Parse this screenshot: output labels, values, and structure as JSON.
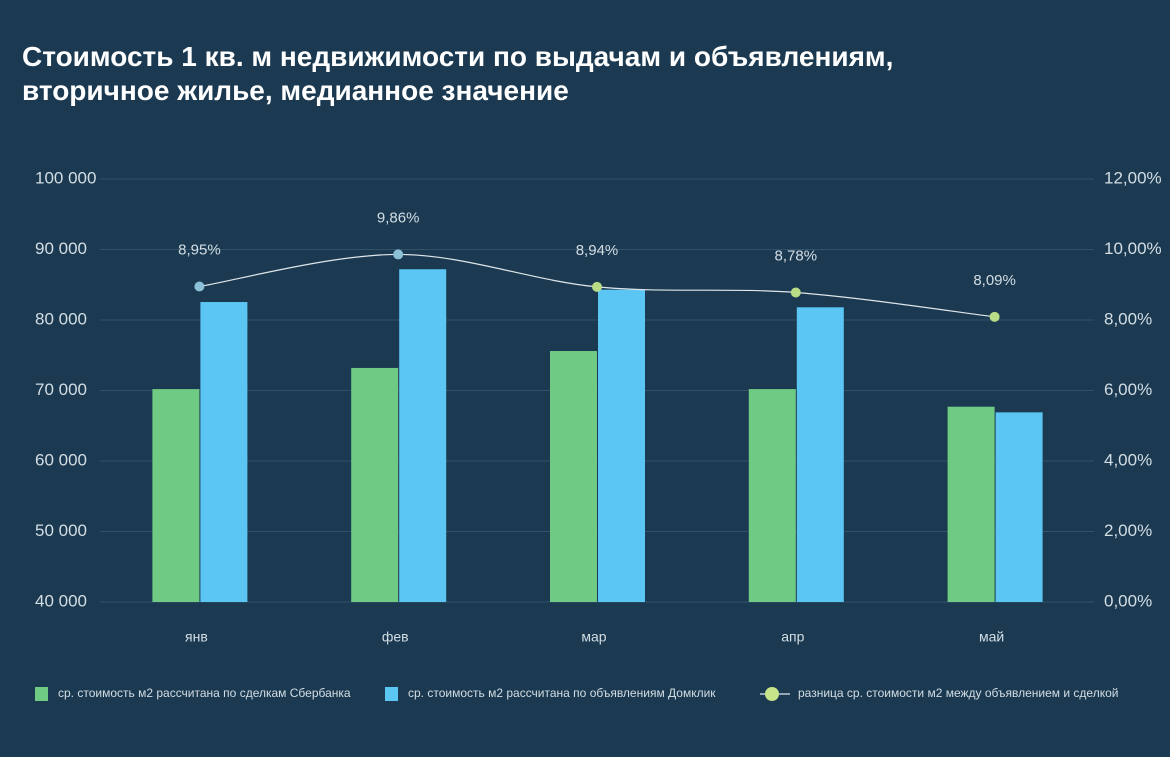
{
  "chart_data": {
    "type": "bar",
    "title": "Стоимость 1 кв. м недвижимости по выдачам и объявлениям, вторичное жилье, медианное значение",
    "categories": [
      "янв",
      "фев",
      "мар",
      "апр",
      "май"
    ],
    "series": [
      {
        "name": "ср. стоимость м2 рассчитана по сделкам Сбербанка",
        "type": "bar",
        "color": "#6fcb84",
        "values": [
          70200,
          73200,
          75600,
          70200,
          67700
        ]
      },
      {
        "name": "ср. стоимость м2 рассчитана по объявлениям Домклик",
        "type": "bar",
        "color": "#5bc6f3",
        "values": [
          82550,
          87200,
          84300,
          81800,
          66900
        ]
      },
      {
        "name": "разница ср. стоимости м2 между объявлением и сделкой",
        "type": "line",
        "axis": "y2",
        "color": "#dfe6ea",
        "marker_colors": [
          "#8cc0d6",
          "#8cc0d6",
          "#b9dc86",
          "#b9dc86",
          "#b9dc86"
        ],
        "legend_marker_color": "#c6e48a",
        "values": [
          8.95,
          9.86,
          8.94,
          8.78,
          8.09
        ],
        "value_labels": [
          "8,95%",
          "9,86%",
          "8,94%",
          "8,78%",
          "8,09%"
        ]
      }
    ],
    "ylim": [
      40000,
      100000
    ],
    "yticks": [
      {
        "value": 40000,
        "label": "40 000"
      },
      {
        "value": 50000,
        "label": "50 000"
      },
      {
        "value": 60000,
        "label": "60 000"
      },
      {
        "value": 70000,
        "label": "70 000"
      },
      {
        "value": 80000,
        "label": "80 000"
      },
      {
        "value": 90000,
        "label": "90 000"
      },
      {
        "value": 100000,
        "label": "100 000"
      }
    ],
    "y2lim": [
      0,
      12
    ],
    "y2ticks": [
      {
        "value": 0,
        "label": "0,00%"
      },
      {
        "value": 2,
        "label": "2,00%"
      },
      {
        "value": 4,
        "label": "4,00%"
      },
      {
        "value": 6,
        "label": "6,00%"
      },
      {
        "value": 8,
        "label": "8,00%"
      },
      {
        "value": 10,
        "label": "10,00%"
      },
      {
        "value": 12,
        "label": "12,00%"
      }
    ],
    "grid": true
  }
}
